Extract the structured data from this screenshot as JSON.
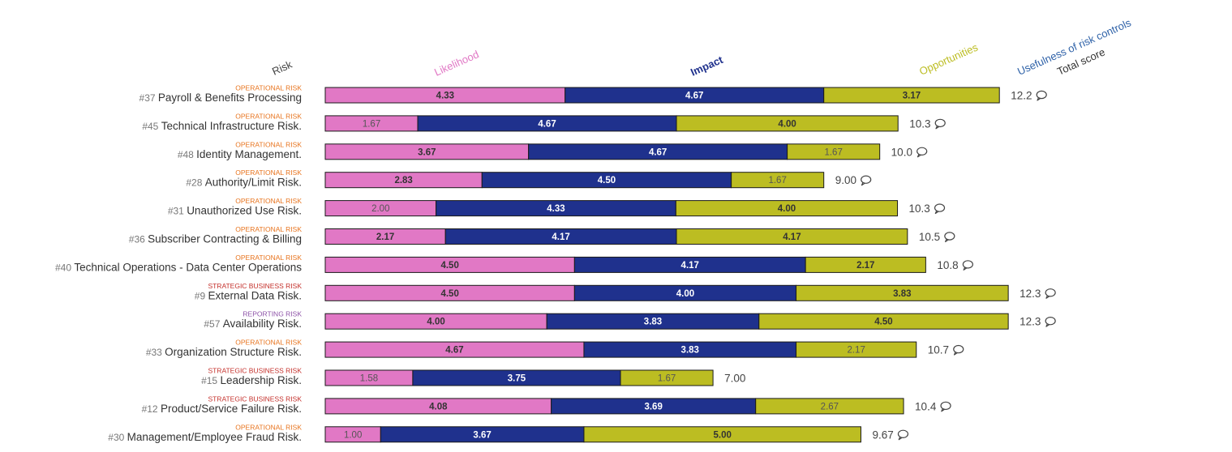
{
  "chart_data": {
    "type": "bar",
    "stacked": true,
    "orientation": "horizontal",
    "headers": {
      "risk": "Risk",
      "likelihood": "Likelihood",
      "impact": "Impact",
      "opportunities": "Opportunities",
      "usefulness": "Usefulness of risk controls",
      "total": "Total score"
    },
    "colors": {
      "likelihood": "#e178c5",
      "impact": "#1f318d",
      "opportunities": "#bcbd22",
      "usefulness": "#2f62a8",
      "risk_header": "#444444",
      "total_header": "#333333",
      "cat_operational": "#e8741e",
      "cat_strategic": "#c4302b",
      "cat_reporting": "#8e53a8"
    },
    "categories": [
      {
        "category": "OPERATIONAL RISK",
        "cat_key": "operational",
        "number": "#37",
        "name": "Payroll & Benefits Processing"
      },
      {
        "category": "OPERATIONAL RISK",
        "cat_key": "operational",
        "number": "#45",
        "name": "Technical Infrastructure Risk."
      },
      {
        "category": "OPERATIONAL RISK",
        "cat_key": "operational",
        "number": "#48",
        "name": "Identity Management."
      },
      {
        "category": "OPERATIONAL RISK",
        "cat_key": "operational",
        "number": "#28",
        "name": "Authority/Limit Risk."
      },
      {
        "category": "OPERATIONAL RISK",
        "cat_key": "operational",
        "number": "#31",
        "name": "Unauthorized Use Risk."
      },
      {
        "category": "OPERATIONAL RISK",
        "cat_key": "operational",
        "number": "#36",
        "name": "Subscriber Contracting & Billing"
      },
      {
        "category": "OPERATIONAL RISK",
        "cat_key": "operational",
        "number": "#40",
        "name": "Technical Operations - Data Center Operations"
      },
      {
        "category": "STRATEGIC BUSINESS RISK",
        "cat_key": "strategic",
        "number": "#9",
        "name": "External Data Risk."
      },
      {
        "category": "REPORTING RISK",
        "cat_key": "reporting",
        "number": "#57",
        "name": "Availability Risk."
      },
      {
        "category": "OPERATIONAL RISK",
        "cat_key": "operational",
        "number": "#33",
        "name": "Organization Structure Risk."
      },
      {
        "category": "STRATEGIC BUSINESS RISK",
        "cat_key": "strategic",
        "number": "#15",
        "name": "Leadership Risk."
      },
      {
        "category": "STRATEGIC BUSINESS RISK",
        "cat_key": "strategic",
        "number": "#12",
        "name": "Product/Service Failure Risk."
      },
      {
        "category": "OPERATIONAL RISK",
        "cat_key": "operational",
        "number": "#30",
        "name": "Management/Employee Fraud Risk."
      }
    ],
    "series": [
      {
        "name": "Likelihood",
        "key": "likelihood",
        "values": [
          4.33,
          1.67,
          3.67,
          2.83,
          2.0,
          2.17,
          4.5,
          4.5,
          4.0,
          4.67,
          1.58,
          4.08,
          1.0
        ]
      },
      {
        "name": "Impact",
        "key": "impact",
        "values": [
          4.67,
          4.67,
          4.67,
          4.5,
          4.33,
          4.17,
          4.17,
          4.0,
          3.83,
          3.83,
          3.75,
          3.69,
          3.67
        ]
      },
      {
        "name": "Opportunities",
        "key": "opportunities",
        "values": [
          3.17,
          4.0,
          1.67,
          1.67,
          4.0,
          4.17,
          2.17,
          3.83,
          4.5,
          2.17,
          1.67,
          2.67,
          5.0
        ]
      }
    ],
    "value_labels": {
      "likelihood": [
        "4.33",
        "1.67",
        "3.67",
        "2.83",
        "2.00",
        "2.17",
        "4.50",
        "4.50",
        "4.00",
        "4.67",
        "1.58",
        "4.08",
        "1.00"
      ],
      "impact": [
        "4.67",
        "4.67",
        "4.67",
        "4.50",
        "4.33",
        "4.17",
        "4.17",
        "4.00",
        "3.83",
        "3.83",
        "3.75",
        "3.69",
        "3.67"
      ],
      "opportunities": [
        "3.17",
        "4.00",
        "1.67",
        "1.67",
        "4.00",
        "4.17",
        "2.17",
        "3.83",
        "4.50",
        "2.17",
        "1.67",
        "2.67",
        "5.00"
      ]
    },
    "bold_labels": {
      "likelihood": [
        true,
        false,
        true,
        true,
        false,
        true,
        true,
        true,
        true,
        true,
        false,
        true,
        false
      ],
      "impact": [
        true,
        true,
        true,
        true,
        true,
        true,
        true,
        true,
        true,
        true,
        true,
        true,
        true
      ],
      "opportunities": [
        true,
        true,
        false,
        false,
        true,
        true,
        true,
        true,
        true,
        false,
        false,
        false,
        true
      ]
    },
    "totals": [
      "12.2",
      "10.3",
      "10.0",
      "9.00",
      "10.3",
      "10.5",
      "10.8",
      "12.3",
      "12.3",
      "10.7",
      "7.00",
      "10.4",
      "9.67"
    ],
    "has_comment": [
      true,
      true,
      true,
      true,
      true,
      true,
      true,
      true,
      true,
      true,
      false,
      true,
      true
    ]
  }
}
